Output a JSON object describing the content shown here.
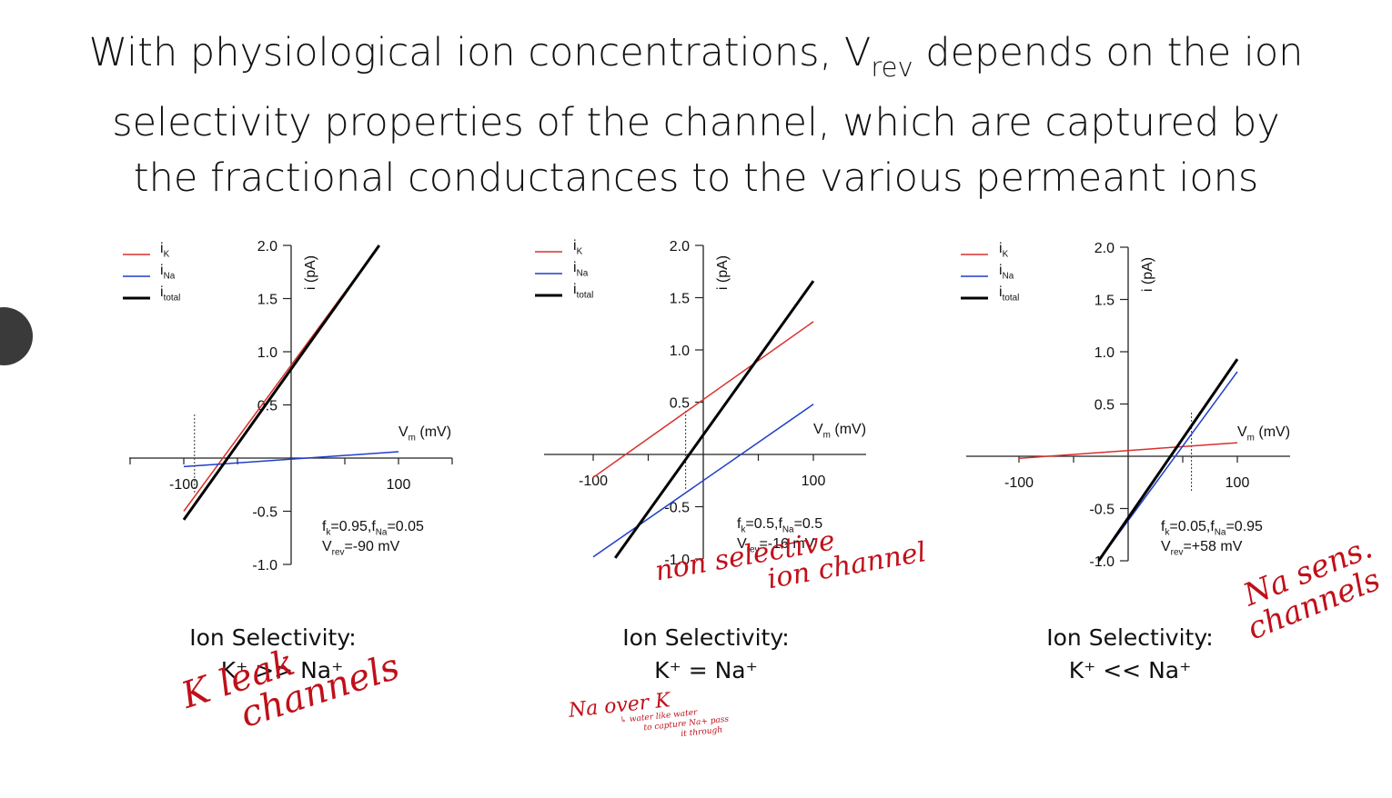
{
  "title": {
    "part1": "With physiological ion concentrations, V",
    "sub": "rev",
    "part2": " depends on the ion",
    "line2": "selectivity properties of the channel, which are captured by",
    "line3": "the fractional conductances to the various permeant ions"
  },
  "legend": [
    {
      "base": "i",
      "sub": "K",
      "color": "#d9302b"
    },
    {
      "base": "i",
      "sub": "Na",
      "color": "#1f3fc8"
    },
    {
      "base": "i",
      "sub": "total",
      "color": "#000000"
    }
  ],
  "axis_labels": {
    "y": "i (pA)",
    "x_base": "V",
    "x_sub": "m",
    "x_unit": " (mV)"
  },
  "chart_data": [
    {
      "type": "line",
      "xlim": [
        -100,
        100
      ],
      "ylim": [
        -1.0,
        2.0
      ],
      "x_ticks": [
        -100,
        100
      ],
      "x_tick_labels": [
        "-100",
        "100"
      ],
      "y_ticks": [
        2.0,
        1.5,
        1.0,
        0.5,
        -0.5,
        -1.0
      ],
      "y_tick_labels": [
        "2.0",
        "1.5",
        "1.0",
        "0.5",
        "-0.5",
        "-1.0"
      ],
      "series": [
        {
          "name": "iK",
          "color": "#d9302b",
          "x": [
            -100,
            82
          ],
          "y": [
            -0.5,
            2.0
          ]
        },
        {
          "name": "iNa",
          "color": "#1f3fc8",
          "x": [
            -100,
            100
          ],
          "y": [
            -0.08,
            0.06
          ]
        },
        {
          "name": "itotal",
          "color": "#000000",
          "x": [
            -100,
            82
          ],
          "y": [
            -0.58,
            2.0
          ]
        }
      ],
      "vrev_line_x": -90,
      "annotation": {
        "f_line": "fk=0.95,fNa=0.05",
        "v_line": "-90 mV"
      }
    },
    {
      "type": "line",
      "xlim": [
        -100,
        100
      ],
      "ylim": [
        -1.0,
        2.0
      ],
      "x_ticks": [
        -100,
        100
      ],
      "x_tick_labels": [
        "-100",
        "100"
      ],
      "y_ticks": [
        2.0,
        1.5,
        1.0,
        0.5,
        -0.5,
        -1.0
      ],
      "y_tick_labels": [
        "2.0",
        "1.5",
        "1.0",
        "0.5",
        "-0.5",
        "-1.0"
      ],
      "series": [
        {
          "name": "iK",
          "color": "#d9302b",
          "x": [
            -100,
            100
          ],
          "y": [
            -0.22,
            1.27
          ]
        },
        {
          "name": "iNa",
          "color": "#1f3fc8",
          "x": [
            -100,
            100
          ],
          "y": [
            -0.98,
            0.48
          ]
        },
        {
          "name": "itotal",
          "color": "#000000",
          "x": [
            -80,
            100
          ],
          "y": [
            -0.99,
            1.66
          ]
        }
      ],
      "vrev_line_x": -16,
      "annotation": {
        "f_line": "fk=0.5,fNa=0.5",
        "v_line": "-16 mV"
      }
    },
    {
      "type": "line",
      "xlim": [
        -100,
        100
      ],
      "ylim": [
        -1.0,
        2.0
      ],
      "x_ticks": [
        -100,
        100
      ],
      "x_tick_labels": [
        "-100",
        "100"
      ],
      "y_ticks": [
        2.0,
        1.5,
        1.0,
        0.5,
        -0.5,
        -1.0
      ],
      "y_tick_labels": [
        "2.0",
        "1.5",
        "1.0",
        "0.5",
        "-0.5",
        "-1.0"
      ],
      "series": [
        {
          "name": "iK",
          "color": "#d9302b",
          "x": [
            -100,
            100
          ],
          "y": [
            -0.02,
            0.13
          ]
        },
        {
          "name": "iNa",
          "color": "#1f3fc8",
          "x": [
            -27,
            100
          ],
          "y": [
            -1.0,
            0.81
          ]
        },
        {
          "name": "itotal",
          "color": "#000000",
          "x": [
            -27,
            100
          ],
          "y": [
            -1.0,
            0.93
          ]
        }
      ],
      "vrev_line_x": 58,
      "annotation": {
        "f_line": "fk=0.05,fNa=0.95",
        "v_line": "+58 mV"
      }
    }
  ],
  "selectivity": [
    {
      "heading": "Ion Selectivity:",
      "relation": "K⁺ >> Na⁺"
    },
    {
      "heading": "Ion Selectivity:",
      "relation": "K⁺ = Na⁺"
    },
    {
      "heading": "Ion Selectivity:",
      "relation": "K⁺ << Na⁺"
    }
  ],
  "handwritten": {
    "k_leak_1": "K leak",
    "k_leak_2": "channels",
    "nonsel_1": "non selective",
    "nonsel_2": "ion channel",
    "na_over_k": "Na over K",
    "na_note_1": "↳ water like water",
    "na_note_2": "to capture Na+ pass",
    "na_note_3": "it through",
    "na_sens_1": "Na sens.",
    "na_sens_2": "channels"
  }
}
